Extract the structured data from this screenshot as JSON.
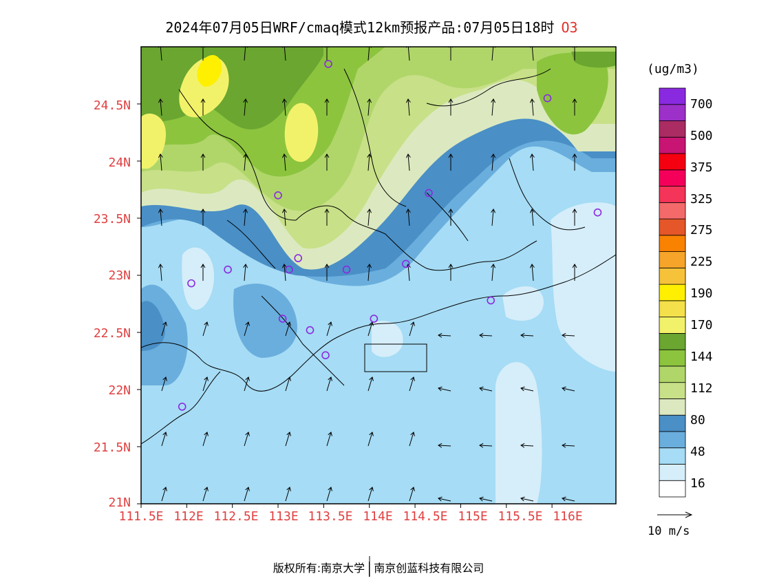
{
  "title": {
    "main": "2024年07月05日WRF/cmaq模式12km预报产品:07月05日18时",
    "pollutant": "O3"
  },
  "axes": {
    "y_ticks": [
      "21N",
      "21.5N",
      "22N",
      "22.5N",
      "23N",
      "23.5N",
      "24N",
      "24.5N"
    ],
    "x_ticks": [
      "111.5E",
      "112E",
      "112.5E",
      "113E",
      "113.5E",
      "114E",
      "114.5E",
      "115E",
      "115.5E",
      "116E"
    ],
    "lon_range": [
      111.5,
      116.7
    ],
    "lat_range": [
      21,
      25
    ]
  },
  "colorbar": {
    "unit": "(ug/m3)",
    "labels": [
      "16",
      "48",
      "80",
      "112",
      "144",
      "170",
      "190",
      "225",
      "275",
      "325",
      "375",
      "500",
      "700"
    ],
    "colors": [
      "#ffffff",
      "#d6eefa",
      "#a6dcf5",
      "#6aaedd",
      "#4a8fc6",
      "#dce9c0",
      "#c8e088",
      "#b0d66a",
      "#8cc43e",
      "#6aa630",
      "#f2f26a",
      "#f4e04a",
      "#fef000",
      "#f6c23a",
      "#f6a52a",
      "#f98200",
      "#e55628",
      "#f46a6a",
      "#f43458",
      "#f4005a",
      "#f40010",
      "#c81472",
      "#aa2c62",
      "#9c30c8",
      "#8a2ae0"
    ]
  },
  "wind_reference": {
    "label": "10 m/s"
  },
  "stations": [
    {
      "lon": 113.55,
      "lat": 24.85
    },
    {
      "lon": 115.95,
      "lat": 24.55
    },
    {
      "lon": 113.0,
      "lat": 23.7
    },
    {
      "lon": 114.65,
      "lat": 23.72
    },
    {
      "lon": 116.5,
      "lat": 23.55
    },
    {
      "lon": 113.22,
      "lat": 23.15
    },
    {
      "lon": 112.45,
      "lat": 23.05
    },
    {
      "lon": 113.12,
      "lat": 23.05
    },
    {
      "lon": 113.75,
      "lat": 23.05
    },
    {
      "lon": 114.4,
      "lat": 23.1
    },
    {
      "lon": 112.05,
      "lat": 22.93
    },
    {
      "lon": 115.33,
      "lat": 22.78
    },
    {
      "lon": 113.05,
      "lat": 22.62
    },
    {
      "lon": 113.35,
      "lat": 22.52
    },
    {
      "lon": 114.05,
      "lat": 22.62
    },
    {
      "lon": 113.52,
      "lat": 22.3
    },
    {
      "lon": 111.95,
      "lat": 21.85
    }
  ],
  "footer": {
    "left": "版权所有:南京大学",
    "right": "南京创蓝科技有限公司"
  }
}
